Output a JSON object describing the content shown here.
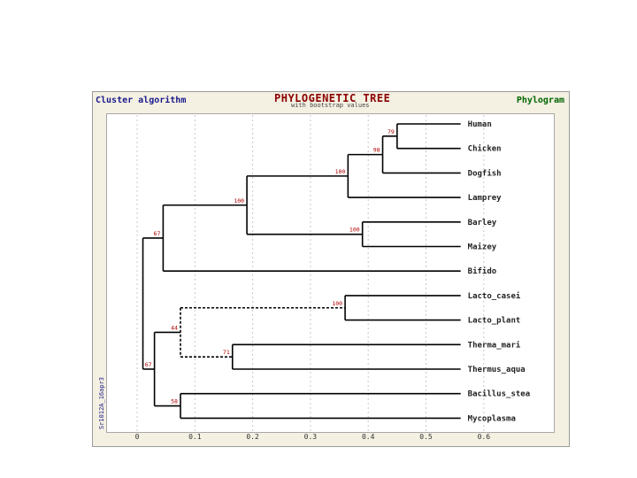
{
  "header": {
    "left": "Cluster algorithm",
    "title": "PHYLOGENETIC TREE",
    "subtitle": "with bootstrap values",
    "right": "Phylogram"
  },
  "side_label": "Sr1012A_16apr3",
  "colors": {
    "frame": "#f4f0e2",
    "branch": "#000000",
    "bootstrap": "#b00000",
    "gridline": "#c8c8c8"
  },
  "axis": {
    "ticks": [
      0,
      0.1,
      0.2,
      0.3,
      0.4,
      0.5,
      0.6
    ],
    "tick_labels": [
      "0",
      "0.1",
      "0.2",
      "0.3",
      "0.4",
      "0.5",
      "0.6"
    ],
    "range": [
      0,
      0.7
    ]
  },
  "tree": {
    "leaves": [
      "Human",
      "Chicken",
      "Dogfish",
      "Lamprey",
      "Barley",
      "Maizey",
      "Bifido",
      "Lacto_casei",
      "Lacto_plant",
      "Therma_mari",
      "Thermus_aqua",
      "Bacillus_stea",
      "Mycoplasma"
    ],
    "leaf_x": 0.56,
    "nodes": [
      {
        "id": "n_hc",
        "x": 0.45,
        "children": [
          "Human",
          "Chicken"
        ],
        "bootstrap": "79"
      },
      {
        "id": "n_hcd",
        "x": 0.425,
        "children": [
          "n_hc",
          "Dogfish"
        ],
        "bootstrap": "98"
      },
      {
        "id": "n_vert",
        "x": 0.365,
        "children": [
          "n_hcd",
          "Lamprey"
        ],
        "bootstrap": "100"
      },
      {
        "id": "n_plant",
        "x": 0.39,
        "children": [
          "Barley",
          "Maizey"
        ],
        "bootstrap": "100"
      },
      {
        "id": "n_euk",
        "x": 0.19,
        "children": [
          "n_vert",
          "n_plant"
        ],
        "bootstrap": "100"
      },
      {
        "id": "n_top",
        "x": 0.045,
        "children": [
          "n_euk",
          "Bifido"
        ],
        "bootstrap": "67"
      },
      {
        "id": "n_lacto",
        "x": 0.36,
        "children": [
          "Lacto_casei",
          "Lacto_plant"
        ],
        "bootstrap": "100"
      },
      {
        "id": "n_therm",
        "x": 0.165,
        "children": [
          "Therma_mari",
          "Thermus_aqua"
        ],
        "bootstrap": "71"
      },
      {
        "id": "n_lt",
        "x": 0.075,
        "children": [
          "n_lacto",
          "n_therm"
        ],
        "bootstrap": "44",
        "dashed": true
      },
      {
        "id": "n_bm",
        "x": 0.075,
        "children": [
          "Bacillus_stea",
          "Mycoplasma"
        ],
        "bootstrap": "58"
      },
      {
        "id": "n_low",
        "x": 0.03,
        "children": [
          "n_lt",
          "n_bm"
        ],
        "bootstrap": "67"
      },
      {
        "id": "n_root",
        "x": 0.01,
        "children": [
          "n_top",
          "n_low"
        ],
        "bootstrap": ""
      }
    ]
  }
}
